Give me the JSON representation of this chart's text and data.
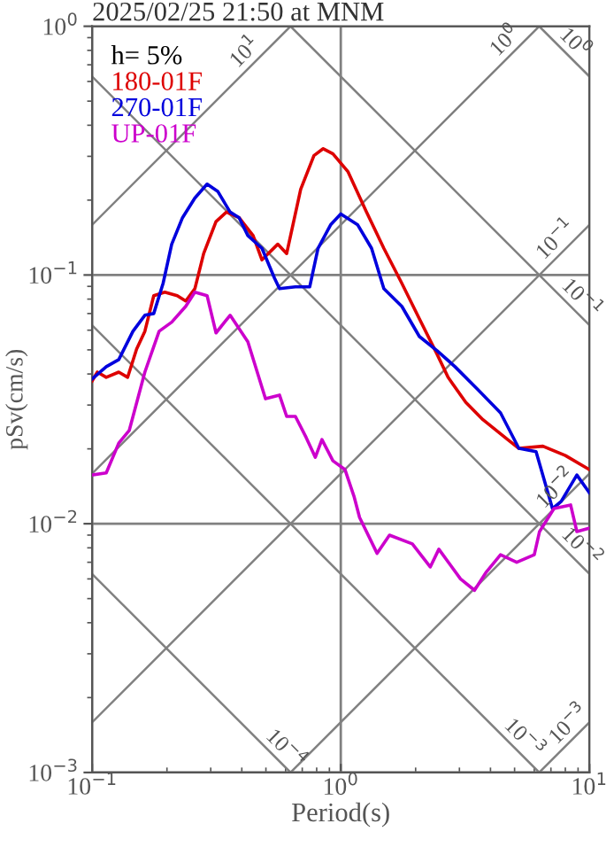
{
  "chart_data": {
    "type": "line",
    "title": "2025/02/25 21:50 at MNM",
    "xlabel": "Period(s)",
    "ylabel": "pSv(cm/s)",
    "legend_title": "h= 5%",
    "legend": "top left",
    "log": "xy",
    "grid": true,
    "xlim": [
      0.1,
      10
    ],
    "ylim": [
      0.001,
      1
    ],
    "xticks": [
      {
        "value": 0.1,
        "label": "10$^{−1}$"
      },
      {
        "value": 1,
        "label": "10$^{0}$"
      },
      {
        "value": 10,
        "label": "10$^{1}$"
      }
    ],
    "yticks": [
      {
        "value": 0.001,
        "label": "10$^{−3}$"
      },
      {
        "value": 0.01,
        "label": "10$^{−2}$"
      },
      {
        "value": 0.1,
        "label": "10$^{−1}$"
      },
      {
        "value": 1,
        "label": "10$^{0}$"
      }
    ],
    "series": [
      {
        "name": "180-01F",
        "color": "#dd0000",
        "x": [
          0.1,
          0.105,
          0.114,
          0.128,
          0.139,
          0.151,
          0.163,
          0.177,
          0.196,
          0.22,
          0.238,
          0.259,
          0.281,
          0.315,
          0.347,
          0.39,
          0.444,
          0.482,
          0.558,
          0.606,
          0.69,
          0.78,
          0.85,
          0.93,
          1.07,
          1.27,
          1.49,
          1.76,
          2.07,
          2.44,
          2.7,
          3.18,
          3.73,
          4.69,
          5.2,
          6.5,
          8.0,
          10
        ],
        "values": [
          0.0375,
          0.0407,
          0.0388,
          0.0407,
          0.0388,
          0.0504,
          0.0594,
          0.0826,
          0.0853,
          0.0826,
          0.0786,
          0.0881,
          0.122,
          0.164,
          0.179,
          0.17,
          0.144,
          0.115,
          0.133,
          0.122,
          0.221,
          0.302,
          0.322,
          0.307,
          0.26,
          0.179,
          0.128,
          0.0926,
          0.0667,
          0.048,
          0.0388,
          0.0308,
          0.0262,
          0.0218,
          0.0201,
          0.0205,
          0.0188,
          0.0165
        ]
      },
      {
        "name": "270-01F",
        "color": "#0000dd",
        "x": [
          0.1,
          0.114,
          0.128,
          0.146,
          0.163,
          0.177,
          0.193,
          0.209,
          0.231,
          0.259,
          0.29,
          0.32,
          0.359,
          0.39,
          0.423,
          0.482,
          0.541,
          0.567,
          0.657,
          0.75,
          0.81,
          0.91,
          1.0,
          1.17,
          1.33,
          1.49,
          1.76,
          2.07,
          2.44,
          2.88,
          3.56,
          4.39,
          5.2,
          6.1,
          7.1,
          7.7,
          8.9,
          10
        ],
        "values": [
          0.0382,
          0.0428,
          0.0457,
          0.0594,
          0.0689,
          0.07,
          0.0926,
          0.133,
          0.17,
          0.204,
          0.232,
          0.217,
          0.179,
          0.17,
          0.144,
          0.128,
          0.0973,
          0.0881,
          0.0896,
          0.0896,
          0.128,
          0.159,
          0.176,
          0.159,
          0.128,
          0.0881,
          0.0748,
          0.0566,
          0.0496,
          0.0428,
          0.0346,
          0.0279,
          0.0201,
          0.0195,
          0.0115,
          0.0123,
          0.0157,
          0.0133
        ]
      },
      {
        "name": "UP-01F",
        "color": "#cc00cc",
        "x": [
          0.1,
          0.114,
          0.128,
          0.141,
          0.163,
          0.186,
          0.209,
          0.238,
          0.259,
          0.29,
          0.315,
          0.359,
          0.423,
          0.498,
          0.567,
          0.606,
          0.657,
          0.726,
          0.79,
          0.84,
          0.93,
          1.04,
          1.13,
          1.19,
          1.4,
          1.57,
          1.94,
          2.29,
          2.48,
          3.03,
          3.45,
          3.85,
          4.39,
          5.1,
          6.0,
          6.3,
          7.2,
          8.4,
          8.9,
          10
        ],
        "values": [
          0.0157,
          0.016,
          0.0211,
          0.0237,
          0.0407,
          0.0594,
          0.0646,
          0.0748,
          0.0853,
          0.0826,
          0.0585,
          0.0689,
          0.0539,
          0.0318,
          0.0329,
          0.027,
          0.027,
          0.0222,
          0.0185,
          0.0218,
          0.0179,
          0.0165,
          0.0129,
          0.0106,
          0.0076,
          0.009,
          0.0083,
          0.0067,
          0.0079,
          0.006,
          0.0054,
          0.0064,
          0.0075,
          0.007,
          0.0075,
          0.0093,
          0.0115,
          0.0119,
          0.0093,
          0.0096
        ]
      },
      {
        "color": "#808080",
        "x": [
          0.1,
          0.628
        ],
        "values": [
          0.159,
          1
        ]
      },
      {
        "color": "#808080",
        "x": [
          0.1,
          6.28
        ],
        "values": [
          0.0159,
          1
        ]
      },
      {
        "color": "#808080",
        "x": [
          0.1,
          10
        ],
        "values": [
          0.00159,
          0.159
        ]
      },
      {
        "color": "#808080",
        "x": [
          0.628,
          10
        ],
        "values": [
          0.001,
          0.0159
        ]
      },
      {
        "color": "#808080",
        "x": [
          6.28,
          10
        ],
        "values": [
          0.001,
          0.00159
        ]
      },
      {
        "color": "#808080",
        "x": [
          6.28,
          10
        ],
        "values": [
          1,
          0.628
        ]
      },
      {
        "color": "#808080",
        "x": [
          0.628,
          10
        ],
        "values": [
          1,
          0.0628
        ]
      },
      {
        "color": "#808080",
        "x": [
          0.1,
          10
        ],
        "values": [
          0.628,
          0.00628
        ]
      },
      {
        "color": "#808080",
        "x": [
          0.1,
          6.28
        ],
        "values": [
          0.0628,
          0.001
        ]
      },
      {
        "color": "#808080",
        "x": [
          0.1,
          0.628
        ],
        "values": [
          0.00628,
          0.001
        ]
      }
    ],
    "annotations": [
      {
        "text": "10$^{1}$",
        "x": 0.45,
        "y": 0.72
      },
      {
        "text": "10$^{0}$",
        "x": 5.0,
        "y": 0.8
      },
      {
        "text": "10$^{−1}$",
        "x": 8.0,
        "y": 0.127
      },
      {
        "text": "10$^{−2}$",
        "x": 8.0,
        "y": 0.0127
      },
      {
        "text": "10$^{−3}$",
        "x": 9.0,
        "y": 0.00143
      },
      {
        "text": "10$^{0}$",
        "x": 8.0,
        "y": 0.785
      },
      {
        "text": "10$^{−1}$",
        "x": 8.5,
        "y": 0.0739
      },
      {
        "text": "10$^{−2}$",
        "x": 8.5,
        "y": 0.00739
      },
      {
        "text": "10$^{−3}$",
        "x": 5.0,
        "y": 0.00126
      },
      {
        "text": "10$^{−4}$",
        "x": 0.55,
        "y": 0.00114
      }
    ]
  }
}
